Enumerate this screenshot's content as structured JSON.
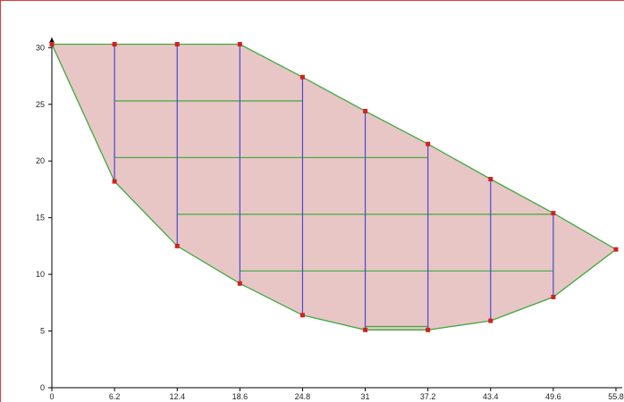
{
  "chart_data": {
    "type": "diagram",
    "title": "",
    "xlabel": "",
    "ylabel": "",
    "xlim": [
      0,
      55.8
    ],
    "ylim": [
      0,
      30.5
    ],
    "x_ticks": [
      "0",
      "6.2",
      "12.4",
      "18.6",
      "24.8",
      "31",
      "37.2",
      "43.4",
      "49.6",
      "55.8"
    ],
    "y_ticks": [
      "0",
      "5",
      "10",
      "15",
      "20",
      "25",
      "30"
    ],
    "colors": {
      "fill": "#e8c6c6",
      "outline": "#3faa3f",
      "vertical_lines": "#4a4ad0",
      "horizontal_lines": "#3faa3f",
      "nodes": "#d42020",
      "frame": "#e23a3a"
    },
    "top_boundary": [
      [
        0,
        30.3
      ],
      [
        6.2,
        30.3
      ],
      [
        12.4,
        30.3
      ],
      [
        18.6,
        30.3
      ],
      [
        24.8,
        27.4
      ],
      [
        31,
        24.4
      ],
      [
        37.2,
        21.5
      ],
      [
        43.4,
        18.4
      ],
      [
        49.6,
        15.4
      ],
      [
        55.8,
        12.2
      ]
    ],
    "bottom_boundary": [
      [
        55.8,
        12.2
      ],
      [
        49.6,
        8.0
      ],
      [
        43.4,
        5.9
      ],
      [
        37.2,
        5.1
      ],
      [
        31,
        5.1
      ],
      [
        24.8,
        6.4
      ],
      [
        18.6,
        9.2
      ],
      [
        12.4,
        12.5
      ],
      [
        6.2,
        18.2
      ],
      [
        0,
        30.3
      ]
    ],
    "vertical_lines": [
      {
        "x": 6.2,
        "y1": 18.2,
        "y2": 30.3
      },
      {
        "x": 12.4,
        "y1": 12.5,
        "y2": 30.3
      },
      {
        "x": 18.6,
        "y1": 9.2,
        "y2": 30.3
      },
      {
        "x": 24.8,
        "y1": 6.4,
        "y2": 27.4
      },
      {
        "x": 31,
        "y1": 5.1,
        "y2": 24.4
      },
      {
        "x": 37.2,
        "y1": 5.1,
        "y2": 21.5
      },
      {
        "x": 43.4,
        "y1": 5.9,
        "y2": 18.4
      },
      {
        "x": 49.6,
        "y1": 8.0,
        "y2": 15.4
      }
    ],
    "horizontal_lines": [
      {
        "y": 25.3,
        "x1": 6.2,
        "x2": 24.8
      },
      {
        "y": 20.3,
        "x1": 6.2,
        "x2": 37.2
      },
      {
        "y": 15.3,
        "x1": 12.4,
        "x2": 49.6
      },
      {
        "y": 10.3,
        "x1": 18.6,
        "x2": 49.6
      },
      {
        "y": 5.4,
        "x1": 31,
        "x2": 37.2
      }
    ],
    "nodes": [
      [
        0,
        30.3
      ],
      [
        6.2,
        30.3
      ],
      [
        12.4,
        30.3
      ],
      [
        18.6,
        30.3
      ],
      [
        24.8,
        27.4
      ],
      [
        31,
        24.4
      ],
      [
        37.2,
        21.5
      ],
      [
        43.4,
        18.4
      ],
      [
        49.6,
        15.4
      ],
      [
        55.8,
        12.2
      ],
      [
        6.2,
        18.2
      ],
      [
        12.4,
        12.5
      ],
      [
        18.6,
        9.2
      ],
      [
        24.8,
        6.4
      ],
      [
        31,
        5.1
      ],
      [
        37.2,
        5.1
      ],
      [
        43.4,
        5.9
      ],
      [
        49.6,
        8.0
      ]
    ]
  }
}
